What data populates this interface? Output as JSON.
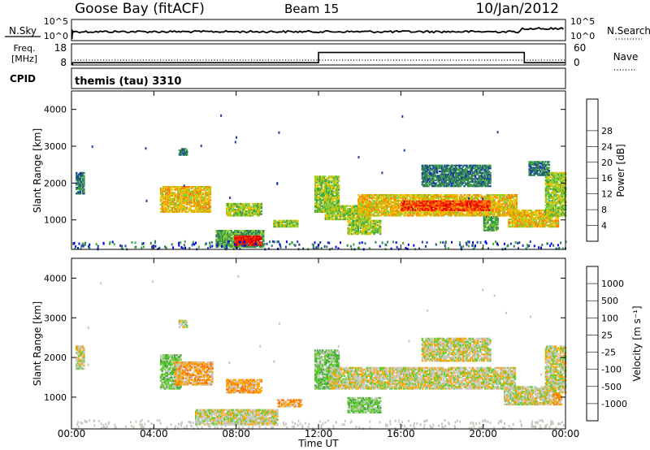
{
  "header": {
    "station": "Goose Bay (fitACF)",
    "beam": "Beam 15",
    "date": "10/Jan/2012"
  },
  "noise_panel": {
    "left_label": "N.Sky",
    "right_label": "N.Search",
    "left_ticks": [
      "10^5",
      "10^0"
    ],
    "right_ticks": [
      "10^5",
      "10^0"
    ]
  },
  "freq_panel": {
    "left_label_line1": "Freq.",
    "left_label_line2": "[MHz]",
    "right_label": "Nave",
    "left_ticks": [
      "18",
      "8"
    ],
    "right_ticks": [
      "60",
      "0"
    ],
    "freq_steps": [
      {
        "start_hour": 0,
        "end_hour": 0.05,
        "level": 8
      },
      {
        "start_hour": 0.05,
        "end_hour": 12,
        "level": 9
      },
      {
        "start_hour": 12,
        "end_hour": 22,
        "level": 16
      },
      {
        "start_hour": 22,
        "end_hour": 24,
        "level": 9
      }
    ]
  },
  "cpid": {
    "label": "CPID",
    "text": "themis (tau) 3310"
  },
  "chart_data": [
    {
      "type": "heatmap",
      "name": "power",
      "ylabel": "Slant Range [km]",
      "yticks": [
        "1000",
        "2000",
        "3000",
        "4000"
      ],
      "ylim": [
        200,
        4500
      ],
      "xlim": [
        0,
        24
      ],
      "colorbar_label": "Power [dB]",
      "colorbar_ticks": [
        "4",
        "8",
        "12",
        "16",
        "20",
        "24",
        "28"
      ],
      "colors": [
        "#0000ee",
        "#1a3fa0",
        "#2e7a5c",
        "#3fa53f",
        "#8ccc2a",
        "#f0c000",
        "#ff8000",
        "#ff3000",
        "#e00000"
      ],
      "echo_regions": [
        {
          "x0": 0.2,
          "x1": 0.6,
          "y0": 1700,
          "y1": 2300,
          "level": 2
        },
        {
          "x0": 4.3,
          "x1": 6.7,
          "y0": 1200,
          "y1": 1900,
          "level": 5
        },
        {
          "x0": 5.2,
          "x1": 5.6,
          "y0": 2750,
          "y1": 2950,
          "level": 2
        },
        {
          "x0": 7.5,
          "x1": 9.2,
          "y0": 1100,
          "y1": 1450,
          "level": 4
        },
        {
          "x0": 7.0,
          "x1": 9.3,
          "y0": 250,
          "y1": 700,
          "level": 3
        },
        {
          "x0": 7.9,
          "x1": 9.2,
          "y0": 300,
          "y1": 550,
          "level": 8
        },
        {
          "x0": 9.8,
          "x1": 11.0,
          "y0": 800,
          "y1": 1000,
          "level": 4
        },
        {
          "x0": 11.8,
          "x1": 13.0,
          "y0": 1200,
          "y1": 2200,
          "level": 4
        },
        {
          "x0": 12.3,
          "x1": 14.5,
          "y0": 1000,
          "y1": 1400,
          "level": 4
        },
        {
          "x0": 13.4,
          "x1": 15.0,
          "y0": 600,
          "y1": 1000,
          "level": 4
        },
        {
          "x0": 13.9,
          "x1": 21.6,
          "y0": 1100,
          "y1": 1700,
          "level": 5
        },
        {
          "x0": 16.0,
          "x1": 20.3,
          "y0": 1250,
          "y1": 1500,
          "level": 7
        },
        {
          "x0": 20.0,
          "x1": 20.7,
          "y0": 700,
          "y1": 1100,
          "level": 3
        },
        {
          "x0": 21.2,
          "x1": 23.6,
          "y0": 800,
          "y1": 1250,
          "level": 5
        },
        {
          "x0": 23.0,
          "x1": 24.0,
          "y0": 1100,
          "y1": 2300,
          "level": 4
        },
        {
          "x0": 17.0,
          "x1": 20.3,
          "y0": 1900,
          "y1": 2500,
          "level": 2
        },
        {
          "x0": 22.2,
          "x1": 23.2,
          "y0": 2200,
          "y1": 2600,
          "level": 2
        }
      ]
    },
    {
      "type": "heatmap",
      "name": "velocity",
      "ylabel": "Slant Range [km]",
      "yticks": [
        "1000",
        "2000",
        "3000",
        "4000"
      ],
      "ylim": [
        200,
        4500
      ],
      "xlim": [
        0,
        24
      ],
      "xticks": [
        "00:00",
        "04:00",
        "08:00",
        "12:00",
        "16:00",
        "20:00",
        "00:00"
      ],
      "xlabel": "Time UT",
      "colorbar_label": "Velocity [m s⁻¹]",
      "colorbar_ticks": [
        "1000",
        "500",
        "100",
        "25",
        "-25",
        "-100",
        "-500",
        "-1000"
      ],
      "colors": [
        "#1a3fbf",
        "#2e7a5c",
        "#3fa53f",
        "#66cc33",
        "#c8c8c0",
        "#ffa500",
        "#ff7000",
        "#ff2000",
        "#e00000"
      ],
      "echo_regions": [
        {
          "x0": 0.2,
          "x1": 0.6,
          "y0": 1700,
          "y1": 2300,
          "level": 4
        },
        {
          "x0": 4.3,
          "x1": 5.3,
          "y0": 1200,
          "y1": 2050,
          "level": 3
        },
        {
          "x0": 5.0,
          "x1": 6.8,
          "y0": 1300,
          "y1": 1900,
          "level": 5
        },
        {
          "x0": 5.2,
          "x1": 5.6,
          "y0": 2750,
          "y1": 2950,
          "level": 4
        },
        {
          "x0": 7.5,
          "x1": 9.2,
          "y0": 1100,
          "y1": 1450,
          "level": 5
        },
        {
          "x0": 6.0,
          "x1": 10.0,
          "y0": 300,
          "y1": 700,
          "level": 4
        },
        {
          "x0": 10.0,
          "x1": 11.2,
          "y0": 750,
          "y1": 950,
          "level": 5
        },
        {
          "x0": 11.8,
          "x1": 13.0,
          "y0": 1200,
          "y1": 2200,
          "level": 3
        },
        {
          "x0": 12.5,
          "x1": 21.5,
          "y0": 1200,
          "y1": 1750,
          "level": 4
        },
        {
          "x0": 13.4,
          "x1": 15.0,
          "y0": 600,
          "y1": 1000,
          "level": 3
        },
        {
          "x0": 17.0,
          "x1": 20.3,
          "y0": 1900,
          "y1": 2500,
          "level": 4
        },
        {
          "x0": 21.0,
          "x1": 23.5,
          "y0": 800,
          "y1": 1250,
          "level": 4
        },
        {
          "x0": 23.4,
          "x1": 23.8,
          "y0": 800,
          "y1": 1100,
          "level": 5
        },
        {
          "x0": 23.0,
          "x1": 24.0,
          "y0": 1100,
          "y1": 2300,
          "level": 4
        }
      ]
    }
  ]
}
